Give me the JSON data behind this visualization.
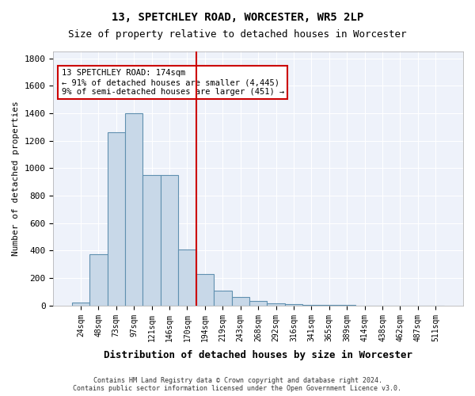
{
  "title1": "13, SPETCHLEY ROAD, WORCESTER, WR5 2LP",
  "title2": "Size of property relative to detached houses in Worcester",
  "xlabel": "Distribution of detached houses by size in Worcester",
  "ylabel": "Number of detached properties",
  "footnote": "Contains HM Land Registry data © Crown copyright and database right 2024.\nContains public sector information licensed under the Open Government Licence v3.0.",
  "bin_labels": [
    "24sqm",
    "48sqm",
    "73sqm",
    "97sqm",
    "121sqm",
    "146sqm",
    "170sqm",
    "194sqm",
    "219sqm",
    "243sqm",
    "268sqm",
    "292sqm",
    "316sqm",
    "341sqm",
    "365sqm",
    "389sqm",
    "414sqm",
    "438sqm",
    "462sqm",
    "487sqm",
    "511sqm"
  ],
  "bar_values": [
    25,
    375,
    1260,
    1400,
    950,
    950,
    410,
    230,
    110,
    65,
    35,
    18,
    8,
    5,
    3,
    2,
    1,
    1,
    1,
    1,
    1
  ],
  "bar_color": "#c8d8e8",
  "bar_edgecolor": "#6090b0",
  "reference_line_label": "13 SPETCHLEY ROAD: 174sqm",
  "annotation_line1": "← 91% of detached houses are smaller (4,445)",
  "annotation_line2": "9% of semi-detached houses are larger (451) →",
  "box_color": "#cc0000",
  "ylim": [
    0,
    1850
  ],
  "yticks": [
    0,
    200,
    400,
    600,
    800,
    1000,
    1200,
    1400,
    1600,
    1800
  ],
  "background_color": "#eef2fa"
}
